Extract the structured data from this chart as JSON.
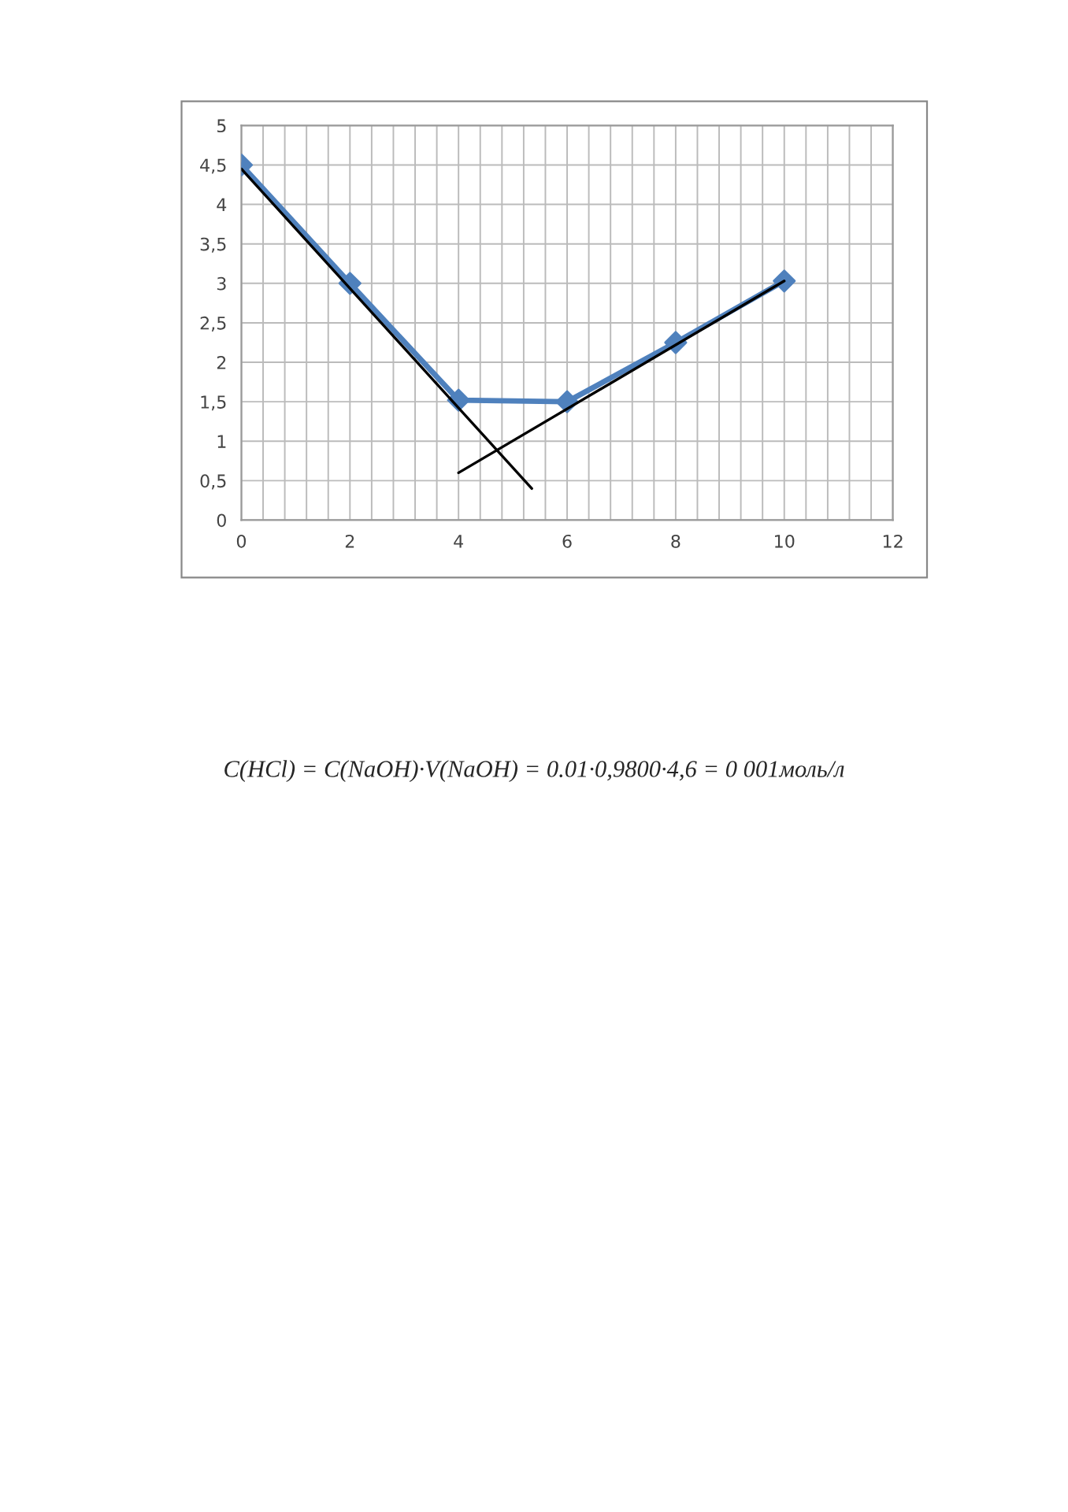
{
  "chart_data": {
    "type": "line",
    "x": [
      0,
      2,
      4,
      6,
      8,
      10
    ],
    "series": [
      {
        "color": "#4f81bd",
        "marker": "diamond",
        "values": [
          4.5,
          3.0,
          1.52,
          1.5,
          2.25,
          3.03
        ]
      },
      {
        "color": "#000000",
        "marker": "none",
        "x": [
          0,
          5.35
        ],
        "values": [
          4.45,
          0.4
        ]
      },
      {
        "color": "#000000",
        "marker": "none",
        "x": [
          4,
          10
        ],
        "values": [
          0.6,
          3.03
        ]
      }
    ],
    "xlim": [
      0,
      12
    ],
    "xticks": [
      0,
      2,
      4,
      6,
      8,
      10,
      12
    ],
    "ylim": [
      0,
      5
    ],
    "yticks": [
      0,
      {
        "value": 0.5,
        "label": "0,5"
      },
      1,
      {
        "value": 1.5,
        "label": "1,5"
      },
      2,
      {
        "value": 2.5,
        "label": "2,5"
      },
      3,
      {
        "value": 3.5,
        "label": "3,5"
      },
      4,
      {
        "value": 4.5,
        "label": "4,5"
      },
      5
    ],
    "grid": true,
    "annotations": [
      "C(HCl) = C(NaOH)·V(NaOH) = 0.01·0,9800·4,6 = 0 001моль/л"
    ]
  }
}
